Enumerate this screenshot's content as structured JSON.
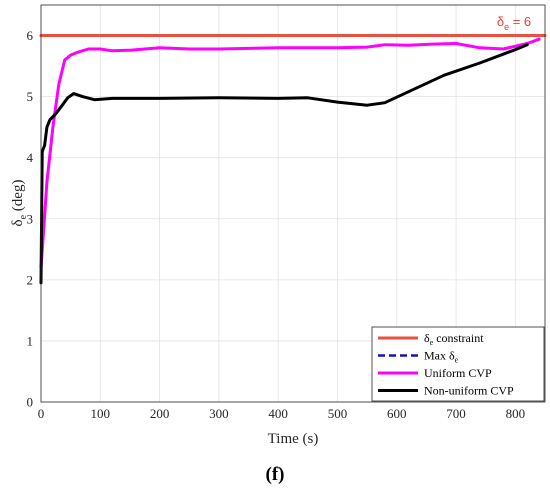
{
  "chart_data": {
    "type": "line",
    "xlabel": "Time (s)",
    "ylabel_main": "δ",
    "ylabel_sub": "e",
    "ylabel_rest": " (deg)",
    "xlim": [
      0,
      850
    ],
    "ylim": [
      0,
      6.5
    ],
    "x_ticks": [
      0,
      100,
      200,
      300,
      400,
      500,
      600,
      700,
      800
    ],
    "y_ticks": [
      0,
      1,
      2,
      3,
      4,
      5,
      6
    ],
    "grid": true,
    "legend_position": "bottom-right",
    "annotation": {
      "main": "δ",
      "sub": "e",
      "rest": " = 6",
      "x": 790,
      "y": 6,
      "color": "#e8403b"
    },
    "panel_label": "(f)",
    "series": [
      {
        "name_main": "δ",
        "name_sub": "e",
        "name_rest": " constraint",
        "color": "#e8503f",
        "width": 3,
        "dash": "",
        "x": [
          0,
          850
        ],
        "y": [
          6,
          6
        ]
      },
      {
        "name_main": "Max δ",
        "name_sub": "e",
        "name_rest": "",
        "color": "#1010c8",
        "width": 2.5,
        "dash": "7,4",
        "x": [],
        "y": []
      },
      {
        "name_main": "Uniform CVP",
        "name_sub": "",
        "name_rest": "",
        "color": "#ff00ff",
        "width": 3,
        "dash": "",
        "x": [
          0,
          5,
          10,
          20,
          30,
          40,
          50,
          60,
          80,
          100,
          120,
          150,
          200,
          250,
          300,
          400,
          500,
          550,
          580,
          620,
          660,
          700,
          740,
          780,
          820,
          840
        ],
        "y": [
          2.2,
          2.9,
          3.6,
          4.5,
          5.2,
          5.6,
          5.68,
          5.72,
          5.78,
          5.78,
          5.75,
          5.76,
          5.8,
          5.78,
          5.78,
          5.8,
          5.8,
          5.81,
          5.85,
          5.84,
          5.86,
          5.87,
          5.8,
          5.78,
          5.87,
          5.94
        ]
      },
      {
        "name_main": "Non-uniform CVP",
        "name_sub": "",
        "name_rest": "",
        "color": "#000000",
        "width": 3,
        "dash": "",
        "x": [
          0,
          2,
          4,
          6,
          10,
          15,
          25,
          35,
          45,
          55,
          70,
          90,
          120,
          200,
          300,
          400,
          450,
          500,
          550,
          580,
          620,
          680,
          740,
          800,
          820
        ],
        "y": [
          1.95,
          4.1,
          4.15,
          4.2,
          4.5,
          4.62,
          4.72,
          4.85,
          4.98,
          5.05,
          5.0,
          4.95,
          4.97,
          4.97,
          4.98,
          4.97,
          4.98,
          4.91,
          4.86,
          4.9,
          5.08,
          5.35,
          5.55,
          5.77,
          5.85
        ]
      }
    ]
  }
}
